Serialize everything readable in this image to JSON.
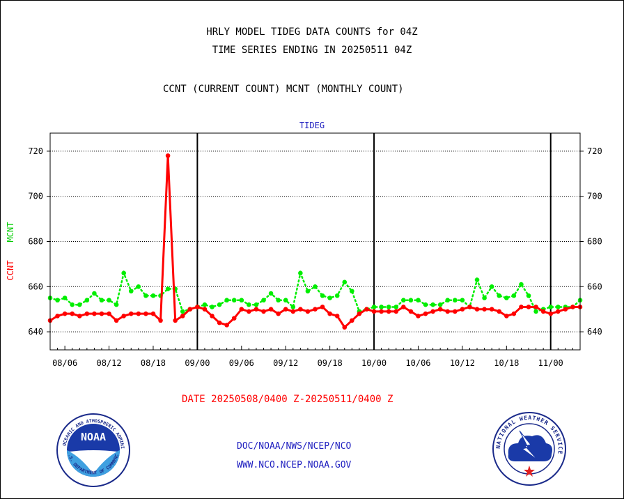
{
  "header": {
    "title_line1": "HRLY MODEL TIDEG DATA COUNTS for 04Z",
    "title_line2": "TIME SERIES ENDING IN 20250511 04Z",
    "legend_line": "CCNT (CURRENT COUNT) MCNT (MONTHLY COUNT)"
  },
  "footer": {
    "date_range": "DATE 20250508/0400 Z-20250511/0400 Z",
    "link1": "DOC/NOAA/NWS/NCEP/NCO",
    "link2": "WWW.NCO.NCEP.NOAA.GOV"
  },
  "logos": {
    "left_text": "NOAA",
    "left_ring": "NATIONAL OCEANIC AND ATMOSPHERIC ADMINISTRATION",
    "left_ring_bottom": "U.S. DEPARTMENT OF COMMERCE",
    "right_ring": "NATIONAL WEATHER SERVICE"
  },
  "colors": {
    "ccnt": "#ff0000",
    "mcnt": "#00ee00",
    "panel_title": "#2020c0"
  },
  "chart_data": {
    "type": "line",
    "title": "TIDEG",
    "ylabel_series": [
      "CCNT",
      "MCNT"
    ],
    "ylim": [
      632,
      728
    ],
    "yticks": [
      640,
      660,
      680,
      700,
      720
    ],
    "xlim": [
      0,
      72
    ],
    "xtick_labels": [
      "08/06",
      "08/12",
      "08/18",
      "09/00",
      "09/06",
      "09/12",
      "09/18",
      "10/00",
      "10/06",
      "10/12",
      "10/18",
      "11/00"
    ],
    "xticks": [
      2,
      8,
      14,
      20,
      26,
      32,
      38,
      44,
      50,
      56,
      62,
      68
    ],
    "day_boundaries": [
      20,
      44,
      68
    ],
    "grid": "horizontal",
    "series": [
      {
        "name": "CCNT",
        "style": "solid",
        "values": [
          645,
          647,
          648,
          648,
          647,
          648,
          648,
          648,
          648,
          645,
          647,
          648,
          648,
          648,
          648,
          645,
          718,
          645,
          647,
          650,
          651,
          650,
          647,
          644,
          643,
          646,
          650,
          649,
          650,
          649,
          650,
          648,
          650,
          649,
          650,
          649,
          650,
          651,
          648,
          647,
          642,
          645,
          648,
          650,
          649,
          649,
          649,
          649,
          651,
          649,
          647,
          648,
          649,
          650,
          649,
          649,
          650,
          651,
          650,
          650,
          650,
          649,
          647,
          648,
          651,
          651,
          651,
          649,
          648,
          649,
          650,
          651,
          651
        ]
      },
      {
        "name": "MCNT",
        "style": "dotted",
        "values": [
          655,
          654,
          655,
          652,
          652,
          654,
          657,
          654,
          654,
          652,
          666,
          658,
          660,
          656,
          656,
          656,
          659,
          659,
          649,
          650,
          651,
          652,
          651,
          652,
          654,
          654,
          654,
          652,
          652,
          654,
          657,
          654,
          654,
          651,
          666,
          658,
          660,
          656,
          655,
          656,
          662,
          658,
          649,
          650,
          651,
          651,
          651,
          651,
          654,
          654,
          654,
          652,
          652,
          652,
          654,
          654,
          654,
          651,
          663,
          655,
          660,
          656,
          655,
          656,
          661,
          656,
          649,
          650,
          651,
          651,
          651,
          651,
          654
        ]
      }
    ]
  }
}
